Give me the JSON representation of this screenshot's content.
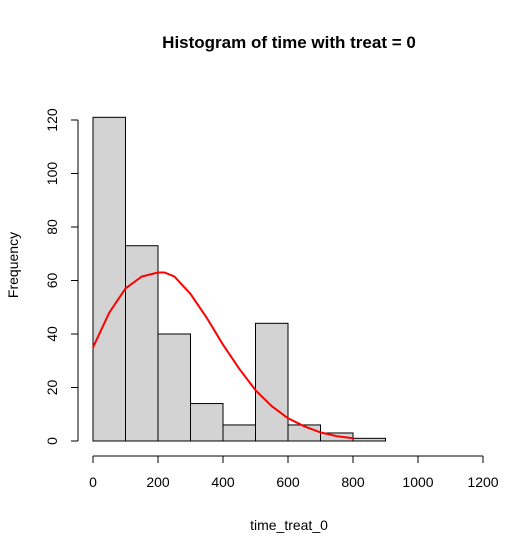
{
  "chart_data": {
    "type": "bar",
    "title": "Histogram of time with treat = 0",
    "xlabel": "time_treat_0",
    "ylabel": "Frequency",
    "xlim": [
      0,
      1200
    ],
    "ylim": [
      0,
      120
    ],
    "x_ticks": [
      0,
      200,
      400,
      600,
      800,
      1000,
      1200
    ],
    "y_ticks": [
      0,
      20,
      40,
      60,
      80,
      100,
      120
    ],
    "bins": [
      {
        "start": 0,
        "end": 100,
        "count": 121
      },
      {
        "start": 100,
        "end": 200,
        "count": 73
      },
      {
        "start": 200,
        "end": 300,
        "count": 40
      },
      {
        "start": 300,
        "end": 400,
        "count": 14
      },
      {
        "start": 400,
        "end": 500,
        "count": 6
      },
      {
        "start": 500,
        "end": 600,
        "count": 44
      },
      {
        "start": 600,
        "end": 700,
        "count": 6
      },
      {
        "start": 700,
        "end": 800,
        "count": 3
      },
      {
        "start": 800,
        "end": 900,
        "count": 1
      }
    ],
    "overlay_curve": {
      "color": "#ff0000",
      "x": [
        0,
        50,
        100,
        150,
        200,
        220,
        250,
        300,
        350,
        400,
        450,
        500,
        550,
        600,
        650,
        700,
        750,
        800
      ],
      "y": [
        35,
        48,
        57,
        61.5,
        63,
        63,
        61.5,
        55,
        46,
        36,
        27,
        19,
        13,
        8.5,
        5.5,
        3.2,
        1.8,
        1.0
      ]
    },
    "colors": {
      "bar_fill": "#d3d3d3",
      "bar_stroke": "#000000",
      "curve": "#ff0000"
    },
    "grid": false,
    "legend": "none"
  }
}
